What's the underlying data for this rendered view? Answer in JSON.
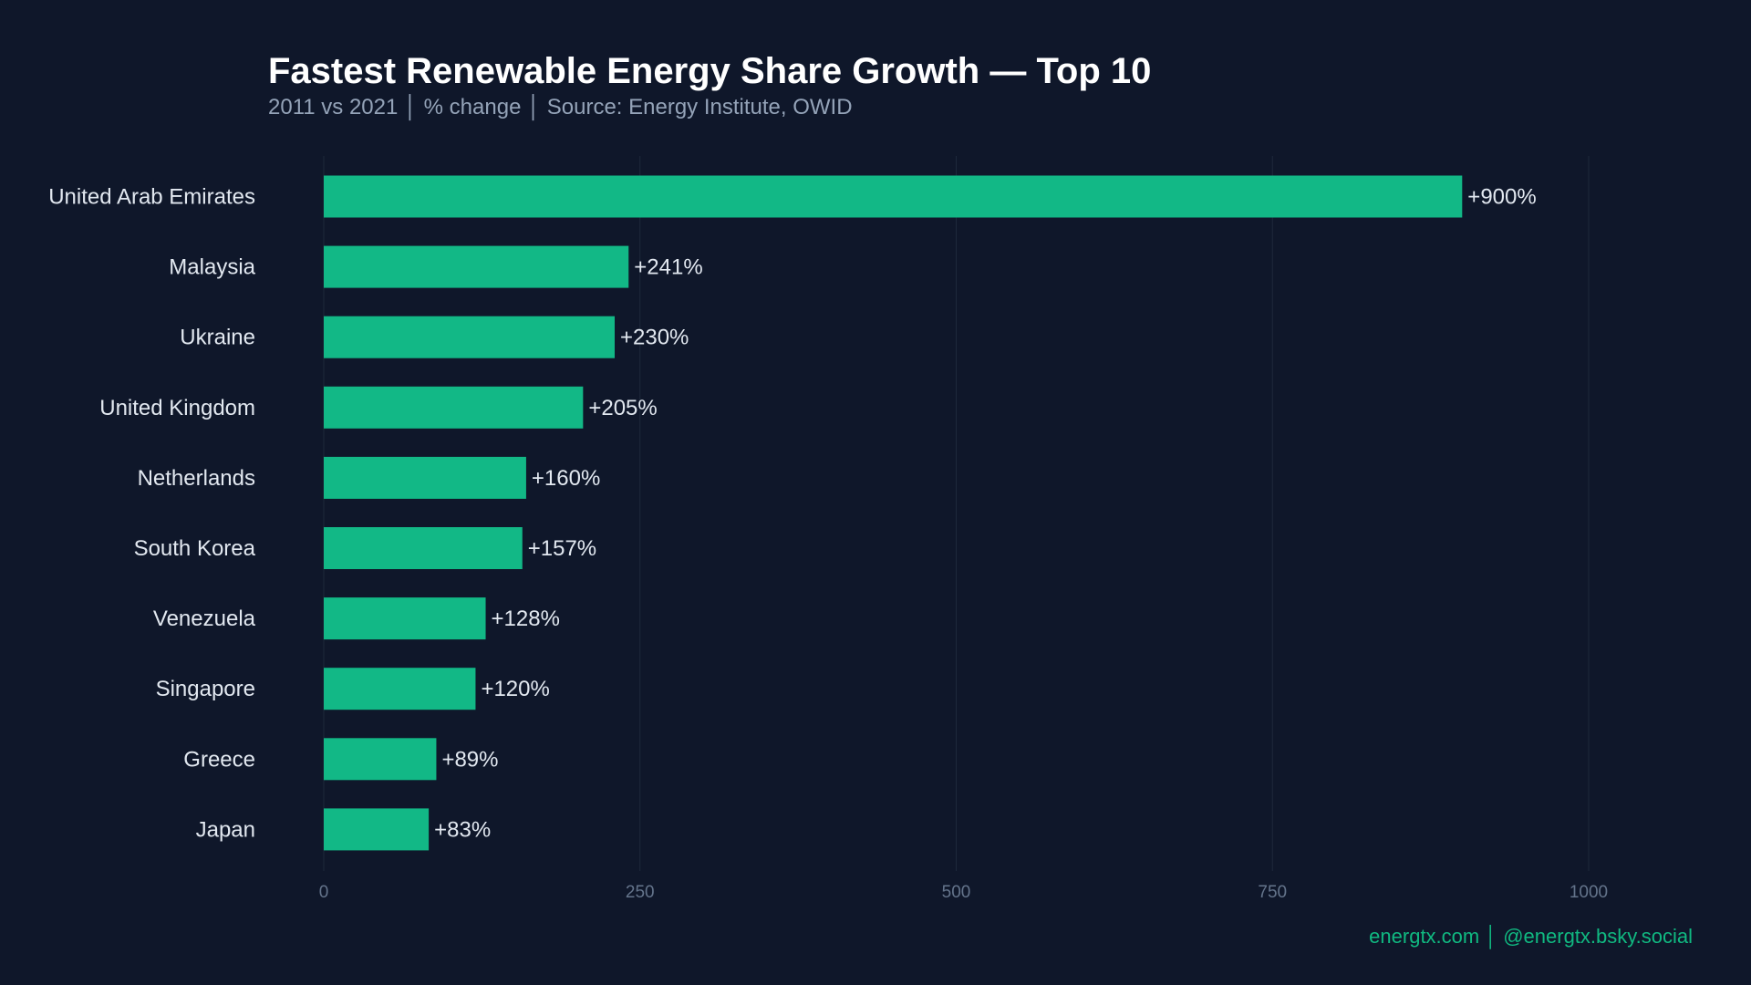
{
  "chart_data": {
    "type": "bar",
    "orientation": "horizontal",
    "title": "Fastest Renewable Energy Share Growth — Top 10",
    "subtitle": "2011 vs 2021  │  % change  │  Source: Energy Institute, OWID",
    "categories": [
      "United Arab Emirates",
      "Malaysia",
      "Ukraine",
      "United Kingdom",
      "Netherlands",
      "South Korea",
      "Venezuela",
      "Singapore",
      "Greece",
      "Japan"
    ],
    "values": [
      900,
      241,
      230,
      205,
      160,
      157,
      128,
      120,
      89,
      83
    ],
    "data_labels": [
      "+900%",
      "+241%",
      "+230%",
      "+205%",
      "+160%",
      "+157%",
      "+128%",
      "+120%",
      "+89%",
      "+83%"
    ],
    "xlim": [
      0,
      1000
    ],
    "xticks": [
      0,
      250,
      500,
      750,
      1000
    ],
    "xtick_labels": [
      "0",
      "250",
      "500",
      "750",
      "1000"
    ],
    "grid": true,
    "colors": {
      "background": "#0f172a",
      "bar": "#12b886",
      "grid": "#1e293b"
    }
  },
  "footer": "energtx.com  │  @energtx.bsky.social"
}
